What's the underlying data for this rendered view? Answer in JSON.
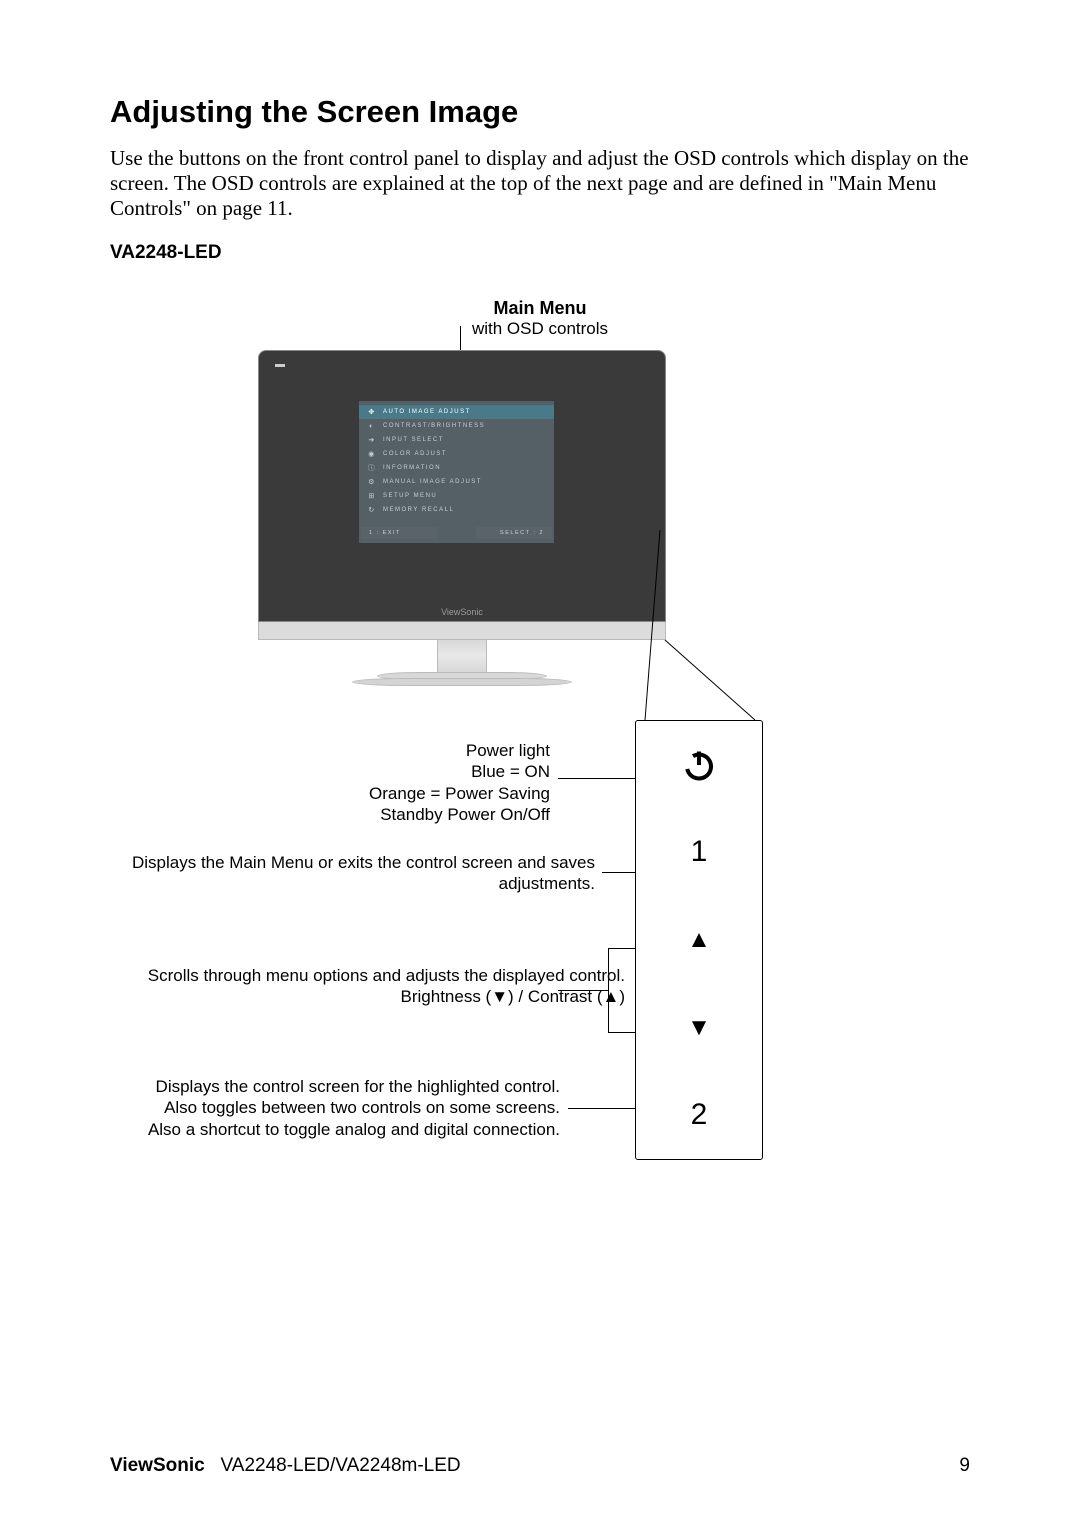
{
  "heading": "Adjusting the Screen Image",
  "paragraph": "Use the buttons on the front control panel to display and adjust the OSD controls which display on the screen. The OSD controls are explained at the top of the next page and are defined in \"Main Menu Controls\" on page 11.",
  "model_label": "VA2248-LED",
  "menu_title": "Main Menu",
  "menu_subtitle": "with OSD controls",
  "osd": {
    "items": [
      {
        "icon": "✥",
        "label": "AUTO IMAGE ADJUST",
        "selected": true
      },
      {
        "icon": "◐",
        "label": "CONTRAST/BRIGHTNESS",
        "selected": false
      },
      {
        "icon": "➜",
        "label": "INPUT SELECT",
        "selected": false
      },
      {
        "icon": "◉",
        "label": "COLOR ADJUST",
        "selected": false
      },
      {
        "icon": "ⓘ",
        "label": "INFORMATION",
        "selected": false
      },
      {
        "icon": "⚙",
        "label": "MANUAL IMAGE ADJUST",
        "selected": false
      },
      {
        "icon": "⊞",
        "label": "SETUP MENU",
        "selected": false
      },
      {
        "icon": "↻",
        "label": "MEMORY RECALL",
        "selected": false
      }
    ],
    "footer_left": "1 : EXIT",
    "footer_right": "SELECT : 2",
    "brand": "ViewSonic"
  },
  "labels": {
    "power": {
      "l1": "Power light",
      "l2": "Blue = ON",
      "l3": "Orange = Power Saving",
      "l4": "Standby Power On/Off"
    },
    "btn1": {
      "l1": "Displays the Main Menu or exits the control screen and saves",
      "l2": "adjustments."
    },
    "arrows": {
      "l1": "Scrolls through menu options and adjusts the displayed control.",
      "l2": "Brightness (▼) / Contrast  (▲)"
    },
    "btn2": {
      "l1": "Displays the control screen for the highlighted control.",
      "l2": "Also toggles between two controls on some screens.",
      "l3": "Also a shortcut to toggle analog and digital connection."
    }
  },
  "buttons": {
    "b1": "1",
    "b2": "2",
    "up": "▲",
    "down": "▼"
  },
  "footer": {
    "brand": "ViewSonic",
    "model": "VA2248-LED/VA2248m-LED",
    "page": "9"
  },
  "colors": {
    "text": "#000000",
    "osd_bg": "#555f66",
    "osd_sel": "#4a7a8a",
    "osd_text": "#c9cfd1"
  }
}
